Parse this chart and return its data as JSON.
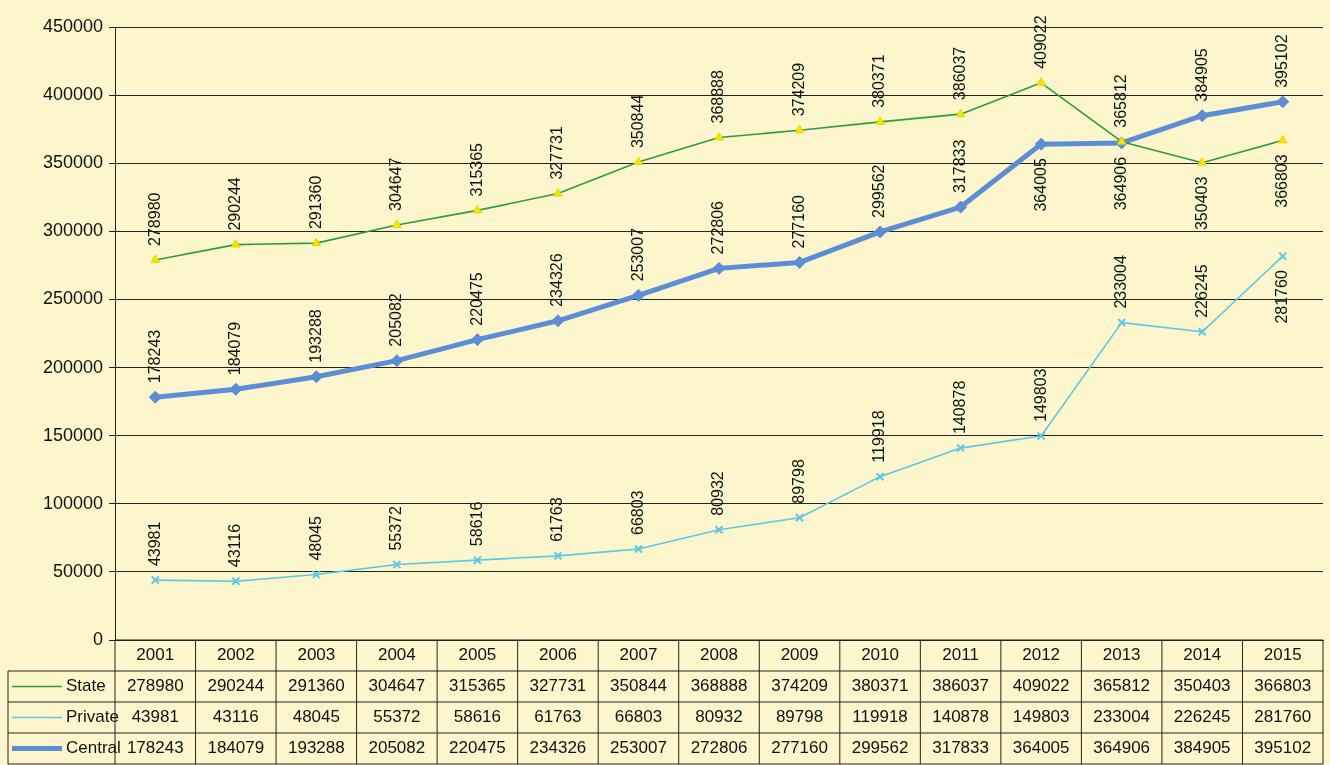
{
  "chart_data": {
    "type": "line",
    "categories": [
      "2001",
      "2002",
      "2003",
      "2004",
      "2005",
      "2006",
      "2007",
      "2008",
      "2009",
      "2010",
      "2011",
      "2012",
      "2013",
      "2014",
      "2015"
    ],
    "series": [
      {
        "name": "State",
        "color": "#2e9b3e",
        "marker": "triangle",
        "values": [
          278980,
          290244,
          291360,
          304647,
          315365,
          327731,
          350844,
          368888,
          374209,
          380371,
          386037,
          409022,
          365812,
          350403,
          366803
        ]
      },
      {
        "name": "Private",
        "color": "#5cc8e2",
        "marker": "cross",
        "values": [
          43981,
          43116,
          48045,
          55372,
          58616,
          61763,
          66803,
          80932,
          89798,
          119918,
          140878,
          149803,
          233004,
          226245,
          281760
        ]
      },
      {
        "name": "Central",
        "color": "#5b8ed4",
        "marker": "diamond",
        "values": [
          178243,
          184079,
          193288,
          205082,
          220475,
          234326,
          253007,
          272806,
          277160,
          299562,
          317833,
          364005,
          364906,
          384905,
          395102
        ]
      }
    ],
    "annotations": [
      {
        "text": "278980",
        "x": "2001",
        "y": 278980
      },
      {
        "text": "290244",
        "x": "2002",
        "y": 290244
      },
      {
        "text": "291360",
        "x": "2003",
        "y": 291360
      },
      {
        "text": "304647",
        "x": "2004",
        "y": 304647
      },
      {
        "text": "315365",
        "x": "2005",
        "y": 315365
      },
      {
        "text": "327731",
        "x": "2006",
        "y": 327731
      },
      {
        "text": "350844",
        "x": "2007",
        "y": 350844
      },
      {
        "text": "368888",
        "x": "2008",
        "y": 368888
      },
      {
        "text": "374209",
        "x": "2009",
        "y": 374209
      },
      {
        "text": "380371",
        "x": "2010",
        "y": 380371
      },
      {
        "text": "386037",
        "x": "2011",
        "y": 386037
      },
      {
        "text": "409022",
        "x": "2012",
        "y": 409022
      },
      {
        "text": "365812",
        "x": "2013",
        "y": 365812
      },
      {
        "text": "350403",
        "x": "2014",
        "y": 350403
      },
      {
        "text": "366803",
        "x": "2015",
        "y": 366803
      },
      {
        "text": "43981",
        "x": "2001",
        "y": 43981
      },
      {
        "text": "43116",
        "x": "2002",
        "y": 43116
      },
      {
        "text": "48045",
        "x": "2003",
        "y": 48045
      },
      {
        "text": "55372",
        "x": "2004",
        "y": 55372
      },
      {
        "text": "58616",
        "x": "2005",
        "y": 58616
      },
      {
        "text": "61763",
        "x": "2006",
        "y": 61763
      },
      {
        "text": "66803",
        "x": "2007",
        "y": 66803
      },
      {
        "text": "80932",
        "x": "2008",
        "y": 80932
      },
      {
        "text": "89798",
        "x": "2009",
        "y": 89798
      },
      {
        "text": "119918",
        "x": "2010",
        "y": 119918
      },
      {
        "text": "140878",
        "x": "2011",
        "y": 140878
      },
      {
        "text": "149803",
        "x": "2012",
        "y": 149803
      },
      {
        "text": "233004",
        "x": "2013",
        "y": 233004
      },
      {
        "text": "226245",
        "x": "2014",
        "y": 226245
      },
      {
        "text": "281760",
        "x": "2015",
        "y": 281760
      },
      {
        "text": "178243",
        "x": "2001",
        "y": 178243
      },
      {
        "text": "184079",
        "x": "2002",
        "y": 184079
      },
      {
        "text": "193288",
        "x": "2003",
        "y": 193288
      },
      {
        "text": "205082",
        "x": "2004",
        "y": 205082
      },
      {
        "text": "220475",
        "x": "2005",
        "y": 220475
      },
      {
        "text": "234326",
        "x": "2006",
        "y": 234326
      },
      {
        "text": "253007",
        "x": "2007",
        "y": 253007
      },
      {
        "text": "272806",
        "x": "2008",
        "y": 272806
      },
      {
        "text": "277160",
        "x": "2009",
        "y": 277160
      },
      {
        "text": "299562",
        "x": "2010",
        "y": 299562
      },
      {
        "text": "317833",
        "x": "2011",
        "y": 317833
      },
      {
        "text": "364005",
        "x": "2012",
        "y": 364005
      },
      {
        "text": "364906",
        "x": "2013",
        "y": 364906
      },
      {
        "text": "384905",
        "x": "2014",
        "y": 384905
      },
      {
        "text": "395102",
        "x": "2015",
        "y": 395102
      }
    ],
    "ylim": [
      0,
      450000
    ],
    "yticks": [
      0,
      50000,
      100000,
      150000,
      200000,
      250000,
      300000,
      350000,
      400000,
      450000
    ],
    "grid": "y",
    "legend": "bottom",
    "data_labels": true
  }
}
